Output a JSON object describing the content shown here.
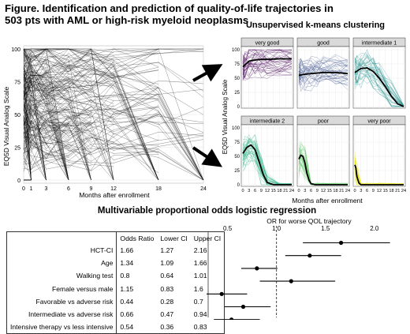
{
  "title": "Figure. Identification and prediction of quality-of-life trajectories in 503 pts with AML or high-risk myeloid neoplasms",
  "clustering_title": "Unsupervised k-means clustering",
  "regression_title": "Multivariable proportional odds logistic regression",
  "table": {
    "headers": [
      "Odds Ratio",
      "Lower CI",
      "Upper CI"
    ],
    "rows": [
      {
        "label": "HCT-CI",
        "or": "1.66",
        "lower": "1.27",
        "upper": "2.16"
      },
      {
        "label": "Age",
        "or": "1.34",
        "lower": "1.09",
        "upper": "1.66"
      },
      {
        "label": "Walking test",
        "or": "0.8",
        "lower": "0.64",
        "upper": "1.01"
      },
      {
        "label": "Female versus male",
        "or": "1.15",
        "lower": "0.83",
        "upper": "1.6"
      },
      {
        "label": "Favorable vs adverse risk",
        "or": "0.44",
        "lower": "0.28",
        "upper": "0.7"
      },
      {
        "label": "Intermediate vs adverse risk",
        "or": "0.66",
        "lower": "0.47",
        "upper": "0.94"
      },
      {
        "label": "Intensive therapy vs less intensive",
        "or": "0.54",
        "lower": "0.36",
        "upper": "0.83"
      }
    ]
  },
  "chart_data": [
    {
      "type": "line",
      "title": "",
      "xlabel": "Months after enrollment",
      "ylabel": "EQ5D Visual Analog Scale",
      "xticks": [
        0,
        1,
        3,
        6,
        9,
        12,
        18,
        24
      ],
      "yticks": [
        0,
        25,
        50,
        75,
        100
      ],
      "xlim": [
        0,
        24
      ],
      "ylim": [
        0,
        100
      ],
      "series_color": "#000000",
      "note": "spaghetti plot of individual patient trajectories"
    },
    {
      "type": "line",
      "title": "",
      "xlabel": "Months after enrollment",
      "ylabel": "EQ5D Visual Analog Scale",
      "xticks": [
        0,
        3,
        6,
        9,
        12,
        15,
        18,
        21,
        24
      ],
      "yticks": [
        0,
        25,
        50,
        75,
        100
      ],
      "xlim": [
        0,
        24
      ],
      "ylim": [
        0,
        100
      ],
      "panels": [
        {
          "name": "very good",
          "color": "#440154",
          "mean": [
            [
              0,
              70
            ],
            [
              3,
              80
            ],
            [
              6,
              82
            ],
            [
              9,
              83
            ],
            [
              12,
              83
            ],
            [
              18,
              84
            ],
            [
              24,
              84
            ]
          ]
        },
        {
          "name": "good",
          "color": "#3b528b",
          "mean": [
            [
              0,
              55
            ],
            [
              3,
              57
            ],
            [
              6,
              58
            ],
            [
              9,
              59
            ],
            [
              12,
              60
            ],
            [
              18,
              60
            ],
            [
              24,
              58
            ]
          ]
        },
        {
          "name": "intermediate 1",
          "color": "#21908c",
          "mean": [
            [
              0,
              60
            ],
            [
              3,
              67
            ],
            [
              6,
              68
            ],
            [
              9,
              62
            ],
            [
              12,
              50
            ],
            [
              15,
              35
            ],
            [
              18,
              18
            ],
            [
              21,
              5
            ],
            [
              24,
              0
            ]
          ]
        },
        {
          "name": "intermediate 2",
          "color": "#27ad81",
          "mean": [
            [
              0,
              55
            ],
            [
              2,
              66
            ],
            [
              4,
              70
            ],
            [
              6,
              62
            ],
            [
              8,
              40
            ],
            [
              10,
              18
            ],
            [
              12,
              4
            ],
            [
              15,
              0
            ],
            [
              24,
              0
            ]
          ]
        },
        {
          "name": "poor",
          "color": "#5dc863",
          "mean": [
            [
              0,
              45
            ],
            [
              1,
              52
            ],
            [
              2,
              50
            ],
            [
              3,
              38
            ],
            [
              4,
              20
            ],
            [
              5,
              8
            ],
            [
              6,
              2
            ],
            [
              8,
              0
            ],
            [
              24,
              0
            ]
          ]
        },
        {
          "name": "very poor",
          "color": "#e3e418",
          "mean": [
            [
              0,
              35
            ],
            [
              0.5,
              30
            ],
            [
              1,
              15
            ],
            [
              2,
              3
            ],
            [
              3,
              0
            ],
            [
              24,
              0
            ]
          ]
        }
      ]
    },
    {
      "type": "scatter",
      "title": "OR for worse QOL trajectory",
      "xticks": [
        0.5,
        1.0,
        1.5,
        2.0
      ],
      "xtick_labels": [
        "0.5",
        "1.0",
        "1.5",
        "2.0"
      ],
      "xlim": [
        0.35,
        2.3
      ],
      "reference_line": 1.0,
      "points": [
        {
          "label": "HCT-CI",
          "or": 1.66,
          "lower": 1.27,
          "upper": 2.16
        },
        {
          "label": "Age",
          "or": 1.34,
          "lower": 1.09,
          "upper": 1.66
        },
        {
          "label": "Walking test",
          "or": 0.8,
          "lower": 0.64,
          "upper": 1.01
        },
        {
          "label": "Female versus male",
          "or": 1.15,
          "lower": 0.83,
          "upper": 1.6
        },
        {
          "label": "Favorable vs adverse risk",
          "or": 0.44,
          "lower": 0.28,
          "upper": 0.7
        },
        {
          "label": "Intermediate vs adverse risk",
          "or": 0.66,
          "lower": 0.47,
          "upper": 0.94
        },
        {
          "label": "Intensive therapy vs less intensive",
          "or": 0.54,
          "lower": 0.36,
          "upper": 0.83
        }
      ]
    }
  ]
}
